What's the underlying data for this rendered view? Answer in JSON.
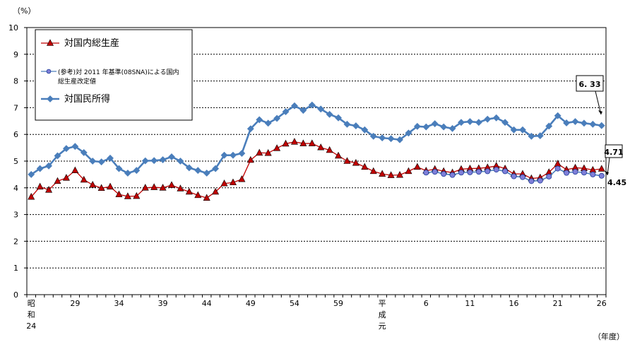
{
  "chart_data": {
    "type": "line",
    "y_unit": "（%）",
    "x_unit": "（年度）",
    "ylim": [
      0,
      10
    ],
    "yticks": [
      0,
      1,
      2,
      3,
      4,
      5,
      6,
      7,
      8,
      9,
      10
    ],
    "grid": "horizontal-dotted",
    "legend_position": "top-left",
    "x_tick_labels": [
      {
        "i": 0,
        "lines": [
          "昭",
          "和",
          "24"
        ]
      },
      {
        "i": 5,
        "lines": [
          "29"
        ]
      },
      {
        "i": 10,
        "lines": [
          "34"
        ]
      },
      {
        "i": 15,
        "lines": [
          "39"
        ]
      },
      {
        "i": 20,
        "lines": [
          "44"
        ]
      },
      {
        "i": 25,
        "lines": [
          "49"
        ]
      },
      {
        "i": 30,
        "lines": [
          "54"
        ]
      },
      {
        "i": 35,
        "lines": [
          "59"
        ]
      },
      {
        "i": 40,
        "lines": [
          "平",
          "成",
          "元"
        ]
      },
      {
        "i": 45,
        "lines": [
          "6"
        ]
      },
      {
        "i": 50,
        "lines": [
          "11"
        ]
      },
      {
        "i": 55,
        "lines": [
          "16"
        ]
      },
      {
        "i": 60,
        "lines": [
          "21"
        ]
      },
      {
        "i": 65,
        "lines": [
          "26"
        ]
      }
    ],
    "series": [
      {
        "name": "対国民所得",
        "color": "#4a7ebb",
        "marker": "diamond",
        "start": 0,
        "values": [
          4.5,
          4.72,
          4.82,
          5.2,
          5.47,
          5.55,
          5.32,
          5.0,
          4.97,
          5.11,
          4.72,
          4.55,
          4.65,
          5.01,
          5.02,
          5.05,
          5.16,
          5.0,
          4.75,
          4.65,
          4.55,
          4.72,
          5.22,
          5.22,
          5.29,
          6.21,
          6.55,
          6.42,
          6.6,
          6.85,
          7.07,
          6.9,
          7.1,
          6.95,
          6.75,
          6.62,
          6.38,
          6.32,
          6.17,
          5.93,
          5.87,
          5.84,
          5.8,
          6.05,
          6.3,
          6.28,
          6.4,
          6.28,
          6.22,
          6.45,
          6.48,
          6.45,
          6.57,
          6.62,
          6.45,
          6.17,
          6.17,
          5.93,
          5.95,
          6.31,
          6.7,
          6.43,
          6.48,
          6.42,
          6.38,
          6.33
        ]
      },
      {
        "name": "対国内総生産",
        "color": "#c00000",
        "marker": "triangle",
        "start": 0,
        "values": [
          3.66,
          4.04,
          3.92,
          4.25,
          4.37,
          4.65,
          4.3,
          4.11,
          3.99,
          4.04,
          3.75,
          3.68,
          3.69,
          4.0,
          4.02,
          4.0,
          4.1,
          3.97,
          3.85,
          3.72,
          3.62,
          3.85,
          4.16,
          4.2,
          4.32,
          5.04,
          5.31,
          5.3,
          5.48,
          5.65,
          5.72,
          5.66,
          5.66,
          5.51,
          5.41,
          5.2,
          5.0,
          4.93,
          4.78,
          4.62,
          4.52,
          4.47,
          4.48,
          4.62,
          4.78,
          4.64,
          4.7,
          4.62,
          4.57,
          4.7,
          4.72,
          4.73,
          4.76,
          4.82,
          4.72,
          4.52,
          4.52,
          4.35,
          4.38,
          4.58,
          4.9,
          4.68,
          4.75,
          4.73,
          4.67,
          4.71
        ]
      },
      {
        "name": "(参考)対 2011 年基準(08SNA)による国内総生産改定値",
        "name_lines": [
          "(参考)対 2011 年基準(08SNA)による国内",
          "総生産改定値"
        ],
        "color": "#4a7ebb",
        "marker_fill": "#7f7fd8",
        "marker": "circle",
        "start": 45,
        "values": [
          4.57,
          4.6,
          4.52,
          4.48,
          4.57,
          4.58,
          4.6,
          4.62,
          4.68,
          4.62,
          4.43,
          4.4,
          4.25,
          4.27,
          4.42,
          4.72,
          4.56,
          4.6,
          4.57,
          4.5,
          4.45
        ]
      }
    ],
    "annotations": [
      {
        "text": "6. 33",
        "series": 0,
        "index": 65
      },
      {
        "text": "4.71",
        "series": 1,
        "index": 65
      },
      {
        "text": "4.45",
        "series": 2,
        "index": 65
      }
    ]
  }
}
